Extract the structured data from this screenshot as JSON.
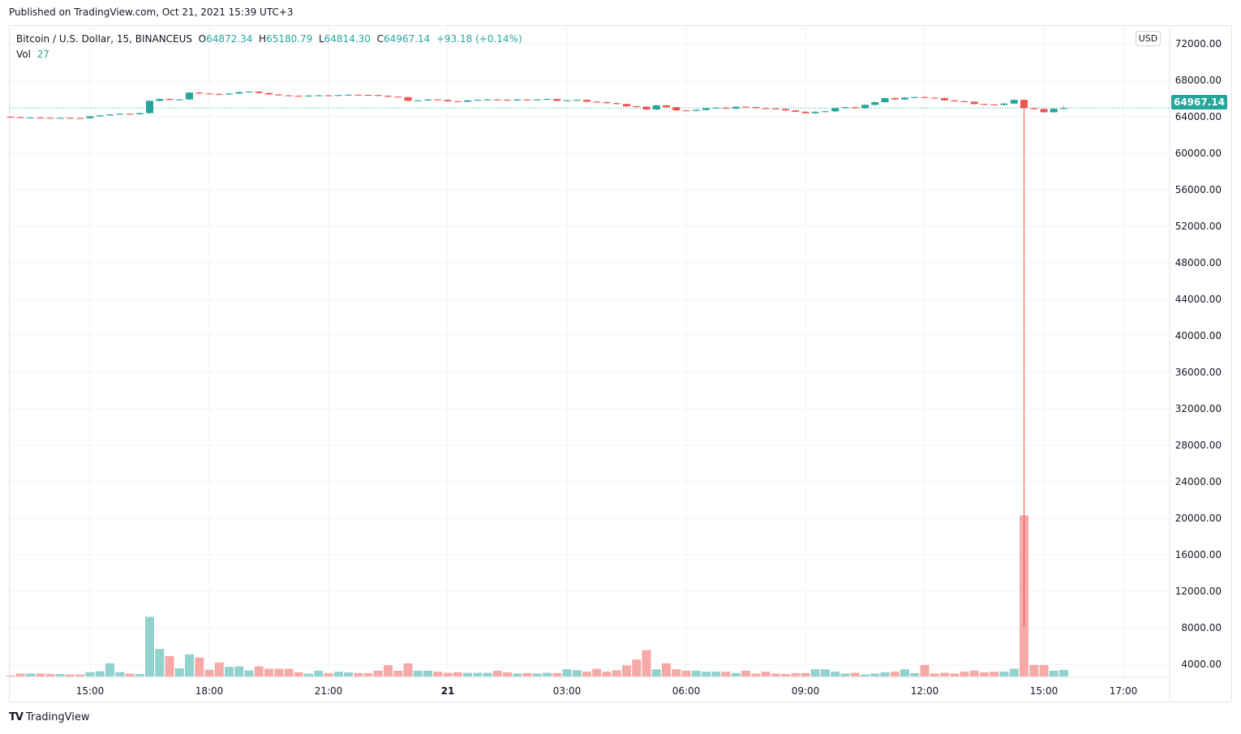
{
  "header": {
    "published": "Published on TradingView.com, Oct 21, 2021 15:39 UTC+3"
  },
  "legend": {
    "symbol": "Bitcoin / U.S. Dollar, 15, BINANCEUS",
    "o_label": "O",
    "o": "64872.34",
    "h_label": "H",
    "h": "65180.79",
    "l_label": "L",
    "l": "64814.30",
    "c_label": "C",
    "c": "64967.14",
    "change": "+93.18 (+0.14%)",
    "vol_label": "Vol",
    "vol": "27"
  },
  "price_axis": {
    "currency_button": "USD",
    "last_price": "64967.14"
  },
  "footer": {
    "brand": "TradingView",
    "logo_glyph": "17"
  },
  "colors": {
    "up": "#26a69a",
    "down": "#ef5350",
    "vol_up": "#92d2cc",
    "vol_down": "#f7a9a7",
    "grid": "#f0f3fa"
  },
  "chart_data": {
    "type": "candlestick",
    "interval_minutes": 15,
    "first_open": 64000,
    "price_ticks": [
      "72000.00",
      "68000.00",
      "64000.00",
      "60000.00",
      "56000.00",
      "52000.00",
      "48000.00",
      "44000.00",
      "40000.00",
      "36000.00",
      "32000.00",
      "28000.00",
      "24000.00",
      "20000.00",
      "16000.00",
      "12000.00",
      "8000.00",
      "4000.00"
    ],
    "time_ticks": [
      {
        "label": "15:00",
        "bar": 8
      },
      {
        "label": "18:00",
        "bar": 20
      },
      {
        "label": "21:00",
        "bar": 32
      },
      {
        "label": "21",
        "bar": 44,
        "bold": true
      },
      {
        "label": "03:00",
        "bar": 56
      },
      {
        "label": "06:00",
        "bar": 68
      },
      {
        "label": "09:00",
        "bar": 80
      },
      {
        "label": "12:00",
        "bar": 92
      },
      {
        "label": "15:00",
        "bar": 104
      },
      {
        "label": "17:00",
        "bar": 112
      }
    ],
    "close": [
      63950,
      63900,
      63920,
      63880,
      63870,
      63880,
      63860,
      63850,
      64050,
      64150,
      64250,
      64320,
      64280,
      64400,
      65750,
      65950,
      65850,
      65900,
      66650,
      66550,
      66500,
      66450,
      66550,
      66700,
      66750,
      66600,
      66450,
      66350,
      66300,
      66250,
      66320,
      66350,
      66300,
      66380,
      66420,
      66400,
      66380,
      66300,
      66200,
      66150,
      65750,
      65800,
      65900,
      65850,
      65700,
      65650,
      65800,
      65850,
      65900,
      65850,
      65800,
      65900,
      65850,
      65900,
      65950,
      65750,
      65800,
      65850,
      65650,
      65600,
      65500,
      65400,
      65150,
      65100,
      64800,
      65250,
      65050,
      64700,
      64650,
      64750,
      64950,
      65000,
      64900,
      65100,
      65050,
      64950,
      64900,
      64850,
      64700,
      64550,
      64400,
      64550,
      64600,
      64950,
      65050,
      64950,
      65300,
      65600,
      66050,
      65900,
      66100,
      66150,
      66100,
      66050,
      65800,
      65700,
      65650,
      65400,
      65350,
      65300,
      65450,
      65850,
      64950,
      64850,
      64500,
      64872.34,
      64967.14
    ],
    "volume": [
      4,
      12,
      12,
      12,
      10,
      10,
      8,
      8,
      18,
      22,
      55,
      18,
      12,
      10,
      250,
      115,
      85,
      34,
      92,
      79,
      28,
      58,
      40,
      42,
      25,
      42,
      32,
      32,
      32,
      17,
      12,
      24,
      14,
      20,
      17,
      14,
      14,
      24,
      47,
      24,
      55,
      24,
      24,
      20,
      15,
      17,
      15,
      15,
      15,
      24,
      17,
      12,
      14,
      12,
      15,
      14,
      30,
      26,
      20,
      32,
      20,
      26,
      46,
      71,
      110,
      30,
      55,
      30,
      24,
      24,
      20,
      20,
      20,
      14,
      24,
      12,
      20,
      12,
      10,
      14,
      14,
      30,
      30,
      20,
      12,
      15,
      8,
      12,
      17,
      20,
      30,
      14,
      48,
      12,
      15,
      12,
      20,
      25,
      17,
      20,
      20,
      32,
      675,
      48,
      48,
      24,
      27
    ],
    "wick_extremes": [
      {
        "bar": 102,
        "low": 8200
      }
    ],
    "last_bar": {
      "open": 64872.34,
      "high": 65180.79,
      "low": 64814.3,
      "close": 64967.14,
      "volume": 27
    },
    "ylim": [
      2500,
      74000
    ],
    "grid": true
  }
}
